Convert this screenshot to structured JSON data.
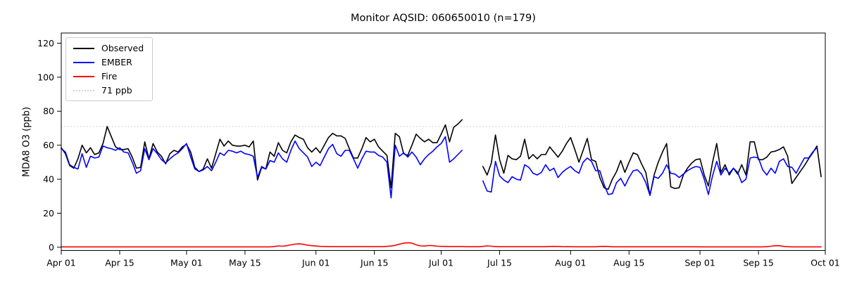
{
  "chart_data": {
    "type": "line",
    "title": "Monitor AQSID: 060650010 (n=179)",
    "ylabel": "MDA8 O3 (ppb)",
    "xlabel": "",
    "ylim": [
      -1.9,
      126
    ],
    "yticks": [
      0,
      20,
      40,
      60,
      80,
      100,
      120
    ],
    "x_unit": "days since Apr 01",
    "x_range_days": 183,
    "xticks": [
      {
        "day": 0,
        "label": "Apr 01"
      },
      {
        "day": 14,
        "label": "Apr 15"
      },
      {
        "day": 30,
        "label": "May 01"
      },
      {
        "day": 44,
        "label": "May 15"
      },
      {
        "day": 61,
        "label": "Jun 01"
      },
      {
        "day": 75,
        "label": "Jun 15"
      },
      {
        "day": 91,
        "label": "Jul 01"
      },
      {
        "day": 105,
        "label": "Jul 15"
      },
      {
        "day": 122,
        "label": "Aug 01"
      },
      {
        "day": 136,
        "label": "Aug 15"
      },
      {
        "day": 153,
        "label": "Sep 01"
      },
      {
        "day": 167,
        "label": "Sep 15"
      },
      {
        "day": 183,
        "label": "Oct 01"
      }
    ],
    "grid": false,
    "legend_position": "upper left",
    "threshold": {
      "label": "71 ppb",
      "value": 71,
      "color": "#d3d3d3",
      "style": "dotted"
    },
    "data_gap_days": [
      "Jul 07",
      "Jul 08",
      "Jul 09",
      "Jul 10"
    ],
    "series": [
      {
        "name": "Observed",
        "color": "#000000",
        "values": [
          58.5,
          55,
          48,
          46.5,
          52,
          60,
          55.5,
          58.5,
          54.5,
          55.5,
          61,
          71,
          65,
          59,
          57.5,
          57.5,
          58,
          53,
          46.5,
          47,
          62,
          52,
          61,
          56,
          53.5,
          49,
          55,
          57,
          56,
          59,
          60.5,
          56,
          47,
          44.5,
          46,
          52,
          46.5,
          55,
          63.5,
          59.5,
          62.5,
          60,
          59.5,
          59.5,
          60,
          59,
          62.5,
          39.5,
          47,
          46,
          56,
          53.5,
          61.5,
          57,
          55.5,
          62,
          66,
          64.5,
          63.5,
          58.5,
          56,
          58.5,
          55.5,
          60,
          64.5,
          67,
          65.5,
          65.5,
          64,
          58,
          52.5,
          52.5,
          58,
          64.5,
          62,
          63.5,
          59,
          56.5,
          54,
          35,
          67,
          65,
          55,
          54,
          60,
          66.5,
          64,
          62,
          63.5,
          61.5,
          61.5,
          66.5,
          72,
          62,
          70.5,
          72.5,
          75,
          null,
          null,
          null,
          null,
          47.5,
          42.5,
          49.5,
          66,
          51.5,
          43.5,
          54,
          52,
          51.5,
          53.5,
          63.5,
          52,
          54.5,
          52,
          54.5,
          54.5,
          59,
          56,
          53,
          56.5,
          61,
          64.5,
          57.5,
          50,
          57,
          64,
          51.5,
          50.5,
          41,
          35,
          34,
          40,
          44.5,
          51,
          44,
          50,
          55.5,
          54.5,
          49,
          44,
          30.5,
          42.5,
          50,
          56,
          61,
          35.5,
          34.5,
          35,
          42.5,
          46.5,
          49.5,
          51.5,
          52,
          42.5,
          36,
          50,
          61,
          44,
          48.5,
          42.5,
          46.5,
          43,
          48.5,
          42.5,
          62,
          62,
          51.5,
          51.5,
          53,
          56,
          56.5,
          57.5,
          59,
          53.5,
          37.5,
          41,
          44.5,
          48,
          52,
          55.5,
          59.5,
          41.5
        ]
      },
      {
        "name": "EMBER",
        "color": "#0000ff",
        "values": [
          58,
          56,
          48.5,
          47,
          46,
          55,
          47,
          53.5,
          52.5,
          53,
          59.5,
          58.5,
          58,
          57,
          58.5,
          56,
          55.5,
          50,
          43.5,
          45,
          58,
          51.5,
          58,
          55,
          51.5,
          49.5,
          52,
          54,
          55.5,
          58,
          61,
          53,
          46,
          44.5,
          45.5,
          47.5,
          45,
          50,
          55.5,
          54,
          57,
          56.5,
          55.5,
          56.5,
          55,
          54.5,
          53.5,
          41,
          47.5,
          46,
          51,
          50,
          55.5,
          52,
          50,
          57,
          62.5,
          58,
          55.5,
          53,
          47.5,
          50,
          48,
          53,
          58,
          60.5,
          55,
          53.5,
          57,
          57,
          52,
          46.5,
          52,
          56.5,
          56,
          56,
          54,
          53,
          50,
          29,
          60,
          53.5,
          55.5,
          53,
          56,
          53,
          48.5,
          52,
          54.5,
          56.5,
          59,
          61,
          65,
          50,
          52,
          54.5,
          57,
          null,
          null,
          null,
          null,
          39,
          33,
          32.5,
          50.5,
          42,
          39.5,
          38,
          41.5,
          40,
          39.5,
          48.5,
          47,
          43.5,
          42.5,
          44,
          48.5,
          45,
          46.5,
          41,
          44,
          46,
          47.5,
          45,
          43.5,
          50,
          52.5,
          50.5,
          45,
          45,
          37,
          31,
          31.5,
          38,
          40.5,
          36,
          41,
          45,
          45.5,
          43,
          38,
          30.5,
          41.5,
          40.5,
          43.5,
          48.5,
          43.5,
          43,
          41,
          43,
          45,
          46.5,
          47.5,
          47,
          40,
          31,
          42,
          50.5,
          42.5,
          46.5,
          43.5,
          46.5,
          44,
          38,
          40,
          52.5,
          53,
          52.5,
          45.5,
          42.5,
          46.5,
          43.5,
          50.5,
          52,
          47.5,
          47,
          43.5,
          48,
          52.5,
          52.5,
          56,
          58.5,
          null
        ]
      },
      {
        "name": "Fire",
        "color": "#ff0000",
        "values": [
          0.2,
          0.2,
          0.2,
          0.2,
          0.2,
          0.2,
          0.2,
          0.2,
          0.2,
          0.2,
          0.2,
          0.2,
          0.2,
          0.2,
          0.2,
          0.2,
          0.2,
          0.2,
          0.2,
          0.2,
          0.2,
          0.2,
          0.2,
          0.2,
          0.2,
          0.2,
          0.2,
          0.2,
          0.2,
          0.2,
          0.2,
          0.2,
          0.2,
          0.2,
          0.2,
          0.2,
          0.2,
          0.2,
          0.2,
          0.2,
          0.2,
          0.2,
          0.2,
          0.2,
          0.2,
          0.2,
          0.2,
          0.2,
          0.2,
          0.2,
          0.2,
          0.4,
          0.8,
          0.6,
          0.9,
          1.4,
          1.8,
          2,
          1.7,
          1.2,
          0.9,
          0.7,
          0.5,
          0.45,
          0.35,
          0.35,
          0.35,
          0.35,
          0.35,
          0.35,
          0.35,
          0.35,
          0.35,
          0.35,
          0.35,
          0.35,
          0.35,
          0.35,
          0.5,
          0.7,
          1.1,
          1.8,
          2.4,
          2.6,
          2.4,
          1.4,
          0.8,
          0.7,
          1,
          0.9,
          0.6,
          0.5,
          0.45,
          0.4,
          0.4,
          0.4,
          0.4,
          0.3,
          0.3,
          0.3,
          0.3,
          0.5,
          0.8,
          0.6,
          0.4,
          0.3,
          0.3,
          0.3,
          0.3,
          0.3,
          0.3,
          0.3,
          0.3,
          0.3,
          0.3,
          0.3,
          0.3,
          0.45,
          0.5,
          0.45,
          0.35,
          0.3,
          0.3,
          0.25,
          0.25,
          0.25,
          0.25,
          0.25,
          0.25,
          0.45,
          0.5,
          0.45,
          0.25,
          0.25,
          0.25,
          0.25,
          0.25,
          0.25,
          0.25,
          0.25,
          0.25,
          0.25,
          0.25,
          0.25,
          0.25,
          0.25,
          0.25,
          0.25,
          0.25,
          0.25,
          0.25,
          0.25,
          0.25,
          0.2,
          0.2,
          0.2,
          0.2,
          0.2,
          0.2,
          0.2,
          0.2,
          0.2,
          0.2,
          0.2,
          0.2,
          0.2,
          0.2,
          0.2,
          0.2,
          0.35,
          0.6,
          0.9,
          0.85,
          0.5,
          0.3,
          0.2,
          0.2,
          0.2,
          0.2,
          0.2,
          0.2,
          0.2,
          0.2
        ]
      }
    ]
  }
}
